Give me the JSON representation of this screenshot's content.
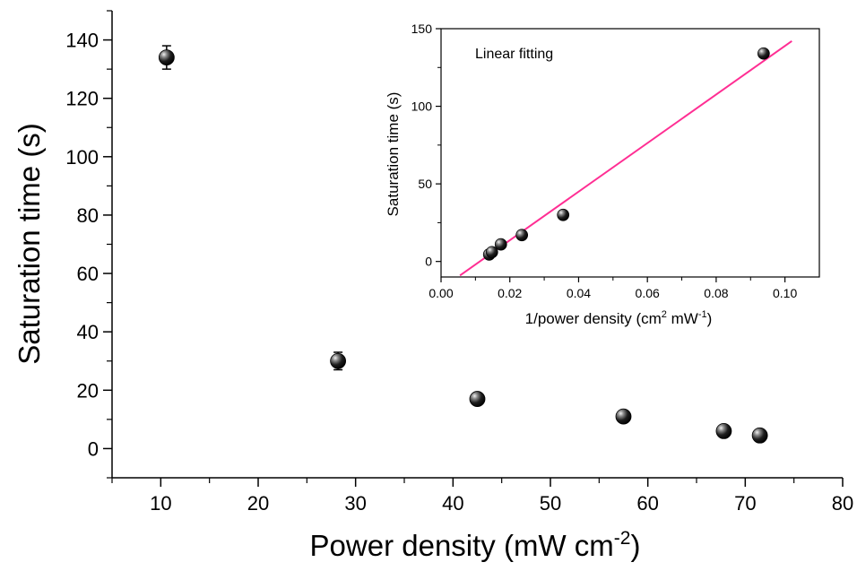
{
  "chart_data": [
    {
      "type": "scatter",
      "xlabel": "Power density (mW cm",
      "xlabel_sup": "-2",
      "xlabel_end": ")",
      "ylabel": "Saturation time (s)",
      "xlim": [
        5,
        80
      ],
      "ylim": [
        -10,
        150
      ],
      "xticks": [
        10,
        20,
        30,
        40,
        50,
        60,
        70,
        80
      ],
      "xtick_labels": [
        "10",
        "20",
        "30",
        "40",
        "50",
        "60",
        "70",
        "80"
      ],
      "yticks": [
        0,
        20,
        40,
        60,
        80,
        100,
        120,
        140
      ],
      "ytick_labels": [
        "0",
        "20",
        "40",
        "60",
        "80",
        "100",
        "120",
        "140"
      ],
      "series": [
        {
          "x": [
            10.6,
            28.2,
            42.5,
            57.5,
            67.8,
            71.5
          ],
          "y": [
            134,
            30,
            17,
            11,
            6,
            4.5
          ],
          "yerr": [
            4,
            3,
            1.5,
            1,
            0.8,
            0.8
          ]
        }
      ]
    },
    {
      "type": "scatter",
      "annotation": "Linear fitting",
      "xlabel": "1/power density (cm",
      "xlabel_sup1": "2",
      "xlabel_mid": " mW",
      "xlabel_sup2": "-1",
      "xlabel_end": ")",
      "ylabel": "Saturation time (s)",
      "xlim": [
        0.0,
        0.11
      ],
      "ylim": [
        -10,
        150
      ],
      "xticks": [
        0.0,
        0.02,
        0.04,
        0.06,
        0.08,
        0.1
      ],
      "xtick_labels": [
        "0.00",
        "0.02",
        "0.04",
        "0.06",
        "0.08",
        "0.10"
      ],
      "yticks": [
        0,
        50,
        100,
        150
      ],
      "ytick_labels": [
        "0",
        "50",
        "100",
        "150"
      ],
      "series": [
        {
          "x": [
            0.014,
            0.0148,
            0.0174,
            0.0235,
            0.0355,
            0.0938
          ],
          "y": [
            4.5,
            6,
            11,
            17,
            30,
            134
          ]
        }
      ],
      "fit_line": {
        "x": [
          0.0055,
          0.102
        ],
        "y": [
          -9,
          142
        ],
        "color": "#ff2e93"
      }
    }
  ]
}
